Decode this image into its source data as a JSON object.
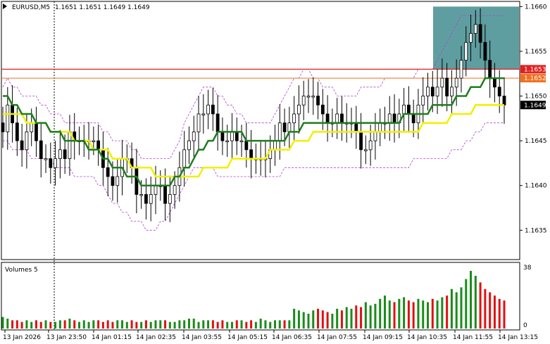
{
  "header": {
    "symbol": "EURUSD,M5",
    "ohlc": "1.1651 1.1651 1.1649 1.1649"
  },
  "volume_panel": {
    "title": "Volumes 5",
    "max_label": "38",
    "zero_label": "0"
  },
  "colors": {
    "up": "#1a8c1a",
    "down": "#e01010",
    "candle": "#000000",
    "ma_fast": "#1e7d1e",
    "ma_slow": "#f0f000",
    "bands": "#b040d0",
    "resistance_line": "#e02020",
    "current_line": "#f07020",
    "zone": "#5f9ea0",
    "price_tag_resistance": "#e02020",
    "price_tag_current": "#f07020",
    "price_tag_last": "#000000"
  },
  "price_tags": {
    "resistance": "1.1653",
    "current": "1.1652",
    "last": "1.1649"
  },
  "chart_data": {
    "type": "candlestick",
    "symbol": "EURUSD",
    "timeframe": "M5",
    "y_ticks": [
      "1.1660",
      "1.1655",
      "1.1650",
      "1.1645",
      "1.1640",
      "1.1635"
    ],
    "y_tick_values": [
      1.166,
      1.1655,
      1.165,
      1.1645,
      1.164,
      1.1635
    ],
    "ylim": [
      1.16318,
      1.16605
    ],
    "x_ticks": [
      "13 Jan 2026",
      "13 Jan 23:50",
      "14 Jan 01:15",
      "14 Jan 02:35",
      "14 Jan 03:55",
      "14 Jan 05:15",
      "14 Jan 06:35",
      "14 Jan 07:55",
      "14 Jan 09:15",
      "14 Jan 10:35",
      "14 Jan 11:55",
      "14 Jan 13:15"
    ],
    "levels": {
      "resistance": 1.1653,
      "current": 1.1652
    },
    "zone": {
      "from": 1.1653,
      "to": 1.166
    },
    "close": [
      1.1646,
      1.1649,
      1.1647,
      1.1645,
      1.1644,
      1.1646,
      1.1647,
      1.1645,
      1.1643,
      1.1643,
      1.1642,
      1.1643,
      1.1644,
      1.1643,
      1.1646,
      1.1645,
      1.1645,
      1.1645,
      1.1645,
      1.1645,
      1.1644,
      1.1642,
      1.1641,
      1.164,
      1.1641,
      1.1643,
      1.1643,
      1.1642,
      1.1639,
      1.1639,
      1.1638,
      1.1639,
      1.164,
      1.164,
      1.1638,
      1.1639,
      1.164,
      1.1642,
      1.1644,
      1.1645,
      1.1646,
      1.1648,
      1.1648,
      1.1649,
      1.1648,
      1.1646,
      1.1645,
      1.1645,
      1.1646,
      1.1645,
      1.1645,
      1.1644,
      1.1643,
      1.1643,
      1.1643,
      1.1643,
      1.1644,
      1.1645,
      1.1647,
      1.1646,
      1.1647,
      1.1648,
      1.1649,
      1.165,
      1.165,
      1.165,
      1.1649,
      1.1648,
      1.1647,
      1.1647,
      1.1648,
      1.1647,
      1.1647,
      1.1647,
      1.1646,
      1.1644,
      1.1644,
      1.1645,
      1.1646,
      1.1647,
      1.1647,
      1.1648,
      1.1647,
      1.1648,
      1.1649,
      1.1648,
      1.1647,
      1.1649,
      1.165,
      1.1651,
      1.165,
      1.1651,
      1.1652,
      1.165,
      1.1651,
      1.1652,
      1.1654,
      1.1656,
      1.1657,
      1.1658,
      1.1656,
      1.1654,
      1.1652,
      1.1651,
      1.165,
      1.1649
    ],
    "volume_max": 38,
    "volumes": [
      7,
      6,
      5,
      5,
      4,
      5,
      4,
      5,
      4,
      5,
      4,
      4,
      5,
      5,
      6,
      5,
      4,
      5,
      4,
      5,
      5,
      4,
      5,
      4,
      5,
      5,
      4,
      5,
      4,
      4,
      5,
      4,
      5,
      5,
      5,
      4,
      4,
      5,
      5,
      6,
      6,
      4,
      5,
      5,
      5,
      4,
      5,
      4,
      4,
      5,
      5,
      4,
      5,
      4,
      6,
      5,
      4,
      5,
      5,
      5,
      5,
      12,
      11,
      10,
      9,
      11,
      12,
      11,
      10,
      9,
      12,
      11,
      13,
      12,
      14,
      13,
      16,
      14,
      15,
      18,
      20,
      17,
      16,
      18,
      19,
      17,
      16,
      18,
      17,
      16,
      18,
      17,
      19,
      20,
      24,
      22,
      25,
      30,
      35,
      32,
      28,
      24,
      22,
      20,
      18,
      17
    ],
    "ma_fast": [
      1.165,
      1.165,
      1.1649,
      1.1649,
      1.1648,
      1.1648,
      1.1648,
      1.1647,
      1.1647,
      1.1647,
      1.1646,
      1.1646,
      1.1646,
      1.1645,
      1.1645,
      1.1645,
      1.1645,
      1.1645,
      1.1644,
      1.1644,
      1.1644,
      1.1643,
      1.1643,
      1.1642,
      1.1642,
      1.1642,
      1.1641,
      1.1641,
      1.1641,
      1.164,
      1.164,
      1.164,
      1.164,
      1.164,
      1.164,
      1.164,
      1.1641,
      1.1641,
      1.1642,
      1.1642,
      1.1643,
      1.1644,
      1.1644,
      1.1645,
      1.1645,
      1.1646,
      1.1646,
      1.1646,
      1.1646,
      1.1646,
      1.1646,
      1.1645,
      1.1645,
      1.1645,
      1.1645,
      1.1645,
      1.1645,
      1.1645,
      1.1645,
      1.1645,
      1.1646,
      1.1646,
      1.1646,
      1.1647,
      1.1647,
      1.1647,
      1.1647,
      1.1647,
      1.1647,
      1.1647,
      1.1647,
      1.1647,
      1.1647,
      1.1647,
      1.1647,
      1.1647,
      1.1647,
      1.1647,
      1.1647,
      1.1647,
      1.1647,
      1.1647,
      1.1647,
      1.1647,
      1.1648,
      1.1648,
      1.1648,
      1.1648,
      1.1648,
      1.1648,
      1.1649,
      1.1649,
      1.1649,
      1.1649,
      1.1649,
      1.165,
      1.165,
      1.165,
      1.1651,
      1.1651,
      1.1651,
      1.1652,
      1.1652,
      1.1652,
      1.1652,
      1.1652
    ],
    "ma_slow": [
      1.1648,
      1.1648,
      1.1648,
      1.1648,
      1.1648,
      1.1647,
      1.1647,
      1.1647,
      1.1647,
      1.1647,
      1.1646,
      1.1646,
      1.1646,
      1.1646,
      1.1646,
      1.1645,
      1.1645,
      1.1645,
      1.1645,
      1.1644,
      1.1644,
      1.1644,
      1.1644,
      1.1643,
      1.1643,
      1.1643,
      1.1643,
      1.1642,
      1.1642,
      1.1642,
      1.1642,
      1.1642,
      1.1641,
      1.1641,
      1.1641,
      1.1641,
      1.1641,
      1.1641,
      1.1641,
      1.1641,
      1.1641,
      1.1641,
      1.1642,
      1.1642,
      1.1642,
      1.1642,
      1.1642,
      1.1642,
      1.1643,
      1.1643,
      1.1643,
      1.1643,
      1.1643,
      1.1643,
      1.1643,
      1.1643,
      1.1644,
      1.1644,
      1.1644,
      1.1644,
      1.1644,
      1.1645,
      1.1645,
      1.1645,
      1.1645,
      1.1646,
      1.1646,
      1.1646,
      1.1646,
      1.1646,
      1.1646,
      1.1646,
      1.1646,
      1.1646,
      1.1646,
      1.1646,
      1.1646,
      1.1646,
      1.1646,
      1.1646,
      1.1646,
      1.1646,
      1.1646,
      1.1646,
      1.1646,
      1.1646,
      1.1646,
      1.1646,
      1.1647,
      1.1647,
      1.1647,
      1.1647,
      1.1647,
      1.1647,
      1.1648,
      1.1648,
      1.1648,
      1.1648,
      1.1648,
      1.1649,
      1.1649,
      1.1649,
      1.1649,
      1.1649,
      1.1649,
      1.1649
    ],
    "band_upper": [
      1.1651,
      1.1652,
      1.1651,
      1.1651,
      1.165,
      1.165,
      1.165,
      1.165,
      1.1649,
      1.1649,
      1.1648,
      1.1648,
      1.1648,
      1.1647,
      1.1647,
      1.1647,
      1.1647,
      1.1647,
      1.1647,
      1.1647,
      1.1647,
      1.1646,
      1.1646,
      1.1645,
      1.1645,
      1.1645,
      1.1645,
      1.1644,
      1.1644,
      1.1643,
      1.1643,
      1.1643,
      1.1643,
      1.1643,
      1.1643,
      1.1643,
      1.1644,
      1.1645,
      1.1647,
      1.1648,
      1.1649,
      1.165,
      1.1651,
      1.1651,
      1.1651,
      1.165,
      1.165,
      1.1649,
      1.1649,
      1.1648,
      1.1648,
      1.1647,
      1.1647,
      1.1647,
      1.1647,
      1.1647,
      1.1647,
      1.1648,
      1.1649,
      1.165,
      1.1651,
      1.1652,
      1.1652,
      1.1653,
      1.1653,
      1.1652,
      1.1652,
      1.1651,
      1.1651,
      1.1651,
      1.165,
      1.165,
      1.165,
      1.165,
      1.165,
      1.1651,
      1.1651,
      1.1651,
      1.1651,
      1.1651,
      1.1652,
      1.1652,
      1.1652,
      1.1652,
      1.1652,
      1.1652,
      1.1652,
      1.1653,
      1.1653,
      1.1653,
      1.1653,
      1.1654,
      1.1655,
      1.1656,
      1.1657,
      1.1658,
      1.1659,
      1.1659,
      1.1659,
      1.1659,
      1.1659,
      1.1659,
      1.1659,
      1.1659,
      1.1659,
      1.1659
    ],
    "band_lower": [
      1.1645,
      1.1645,
      1.1644,
      1.1644,
      1.1644,
      1.1644,
      1.1643,
      1.1643,
      1.1643,
      1.1643,
      1.1643,
      1.1642,
      1.1642,
      1.1642,
      1.1642,
      1.1641,
      1.1641,
      1.1641,
      1.1641,
      1.1641,
      1.164,
      1.164,
      1.1639,
      1.1638,
      1.1638,
      1.1637,
      1.1637,
      1.1636,
      1.1636,
      1.1636,
      1.1635,
      1.1635,
      1.1635,
      1.1636,
      1.1636,
      1.1637,
      1.1638,
      1.1639,
      1.164,
      1.1641,
      1.1642,
      1.1642,
      1.1642,
      1.1642,
      1.1642,
      1.1641,
      1.1641,
      1.1641,
      1.1641,
      1.1641,
      1.1641,
      1.1641,
      1.1641,
      1.1641,
      1.1641,
      1.1641,
      1.1641,
      1.1641,
      1.1641,
      1.1642,
      1.1642,
      1.1642,
      1.1642,
      1.1642,
      1.1642,
      1.1642,
      1.1642,
      1.1642,
      1.1642,
      1.1642,
      1.1642,
      1.1642,
      1.1642,
      1.1642,
      1.1642,
      1.1642,
      1.1642,
      1.1642,
      1.1642,
      1.1642,
      1.1642,
      1.1642,
      1.1642,
      1.1642,
      1.1642,
      1.1642,
      1.1643,
      1.1643,
      1.1643,
      1.1643,
      1.1643,
      1.1643,
      1.1643,
      1.1643,
      1.1644,
      1.1644,
      1.1644,
      1.1645,
      1.1645,
      1.1646,
      1.1646,
      1.1647,
      1.1647,
      1.1647,
      1.1647,
      1.1647
    ]
  }
}
